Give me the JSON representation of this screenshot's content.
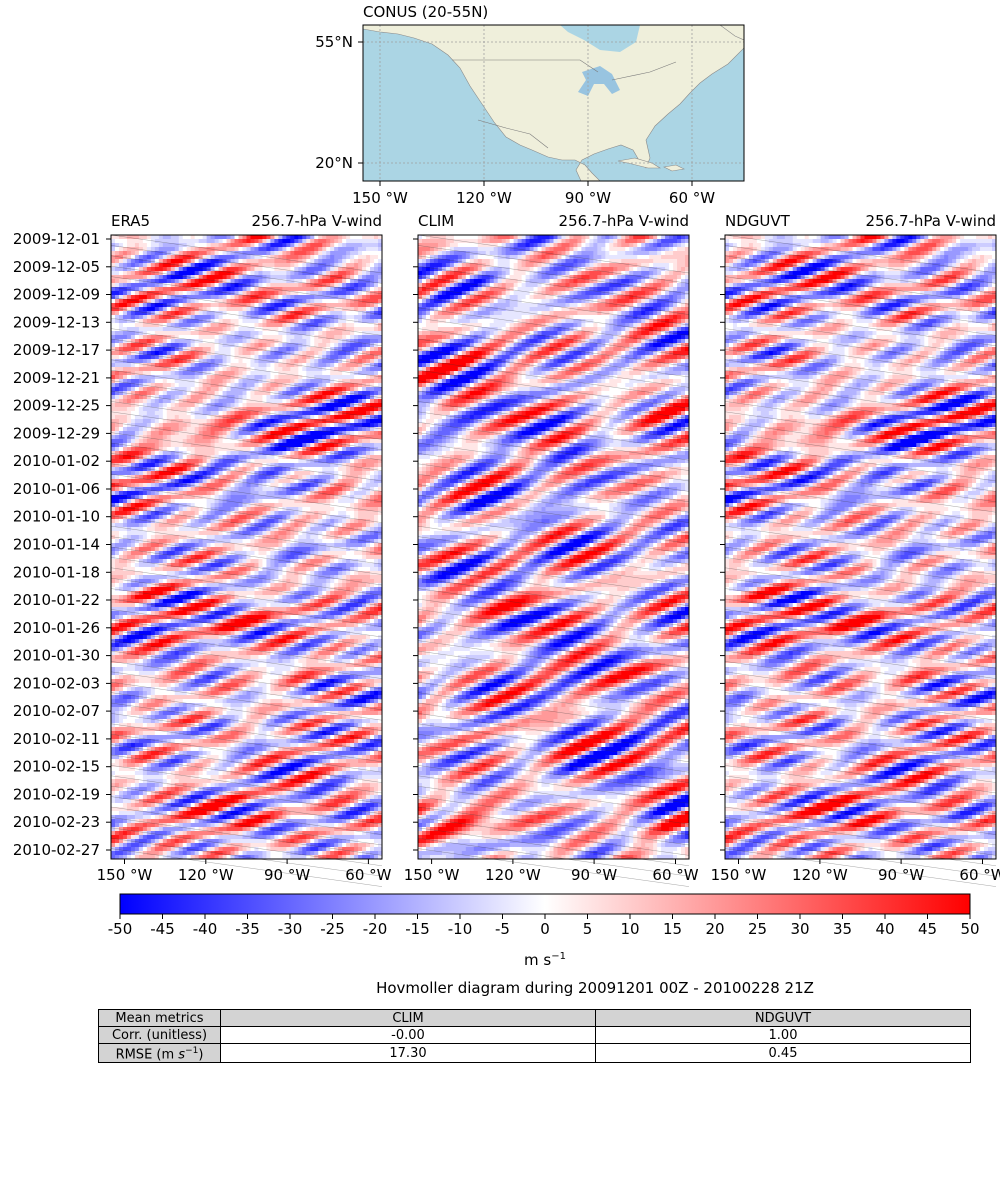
{
  "chart_data": {
    "type": "heatmap",
    "figure_title": "Hovmoller diagram during 20091201 00Z - 20100228 21Z",
    "region_map": {
      "title": "CONUS (20-55N)",
      "lat_ticks": [
        "55°N",
        "20°N"
      ],
      "lon_ticks": [
        "150 °W",
        "120 °W",
        "90 °W",
        "60 °W"
      ]
    },
    "panels": [
      {
        "name": "ERA5",
        "variable": "256.7-hPa V-wind",
        "seed": 11
      },
      {
        "name": "CLIM",
        "variable": "256.7-hPa V-wind",
        "seed": 37
      },
      {
        "name": "NDGUVT",
        "variable": "256.7-hPa V-wind",
        "seed": 11
      }
    ],
    "x_ticks": [
      "150 °W",
      "120 °W",
      "90 °W",
      "60 °W"
    ],
    "x_tick_values": [
      -150,
      -120,
      -90,
      -60
    ],
    "xlim": [
      -155,
      -55
    ],
    "y_ticks": [
      "2009-12-01",
      "2009-12-05",
      "2009-12-09",
      "2009-12-13",
      "2009-12-17",
      "2009-12-21",
      "2009-12-25",
      "2009-12-29",
      "2010-01-02",
      "2010-01-06",
      "2010-01-10",
      "2010-01-14",
      "2010-01-18",
      "2010-01-22",
      "2010-01-26",
      "2010-01-30",
      "2010-02-03",
      "2010-02-07",
      "2010-02-11",
      "2010-02-15",
      "2010-02-19",
      "2010-02-23",
      "2010-02-27"
    ],
    "colorbar": {
      "ticks": [
        "-50",
        "-45",
        "-40",
        "-35",
        "-30",
        "-25",
        "-20",
        "-15",
        "-10",
        "-5",
        "0",
        "5",
        "10",
        "15",
        "20",
        "25",
        "30",
        "35",
        "40",
        "45",
        "50"
      ],
      "range": [
        -50,
        50
      ],
      "colormap": "bwr",
      "units_label": "m s",
      "units_exp": "−1"
    }
  },
  "metrics_table": {
    "headers": [
      "Mean metrics",
      "CLIM",
      "NDGUVT"
    ],
    "rows": [
      {
        "label": "Corr. (unitless)",
        "clim": "-0.00",
        "ndguvt": "1.00"
      },
      {
        "label_pre": "RMSE (m ",
        "label_s": "s",
        "label_exp": "−1",
        "label_post": ")",
        "clim": "17.30",
        "ndguvt": "0.45"
      }
    ]
  },
  "colors": {
    "ocean": "#abd5e4",
    "land": "#efefdb",
    "lakes": "#98c4e0",
    "border": "#7a7a7a"
  }
}
